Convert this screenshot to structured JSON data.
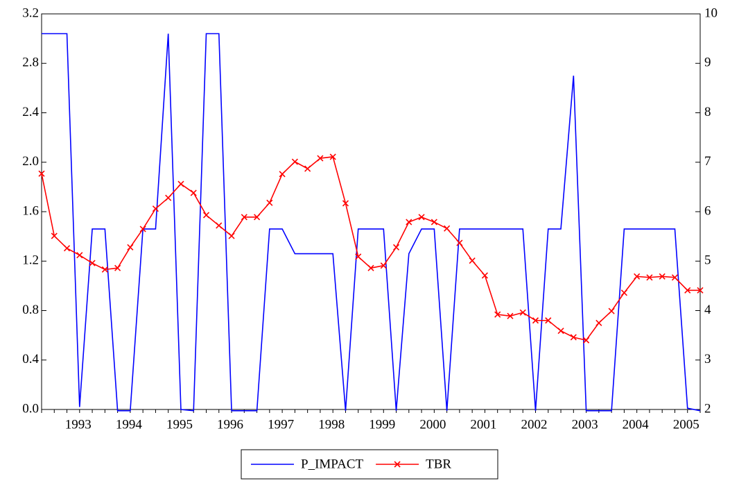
{
  "chart_data": {
    "type": "line",
    "categories": [
      null,
      null,
      null,
      "1993",
      null,
      null,
      null,
      "1994",
      null,
      null,
      null,
      "1995",
      null,
      null,
      null,
      "1996",
      null,
      null,
      null,
      "1997",
      null,
      null,
      null,
      "1998",
      null,
      null,
      null,
      "1999",
      null,
      null,
      null,
      "2000",
      null,
      null,
      null,
      "2001",
      null,
      null,
      null,
      "2002",
      null,
      null,
      null,
      "2003",
      null,
      null,
      null,
      "2004",
      null,
      null,
      null,
      "2005",
      null
    ],
    "series": [
      {
        "name": "P_IMPACT",
        "color": "#0000ff",
        "values": [
          3.04,
          3.04,
          3.04,
          0.02,
          1.46,
          1.46,
          -0.01,
          -0.01,
          1.46,
          1.46,
          3.04,
          0.0,
          -0.01,
          3.04,
          3.04,
          -0.01,
          -0.01,
          -0.01,
          1.46,
          1.46,
          1.26,
          1.26,
          1.26,
          1.26,
          -0.01,
          1.46,
          1.46,
          1.46,
          -0.01,
          1.26,
          1.46,
          1.46,
          -0.01,
          1.46,
          1.46,
          1.46,
          1.46,
          1.46,
          1.46,
          -0.01,
          1.46,
          1.46,
          2.7,
          -0.01,
          -0.01,
          -0.01,
          1.46,
          1.46,
          1.46,
          1.46,
          1.46,
          0.01,
          -0.01
        ]
      },
      {
        "name": "TBR",
        "color": "#ff0000",
        "axis": "y2",
        "marker": "x",
        "values": [
          6.77,
          5.51,
          5.26,
          5.12,
          4.96,
          4.83,
          4.86,
          5.28,
          5.65,
          6.06,
          6.28,
          6.56,
          6.38,
          5.93,
          5.72,
          5.51,
          5.89,
          5.89,
          6.18,
          6.76,
          7.01,
          6.87,
          7.08,
          7.11,
          6.17,
          5.09,
          4.86,
          4.91,
          5.28,
          5.79,
          5.89,
          5.79,
          5.66,
          5.37,
          5.01,
          4.71,
          3.92,
          3.89,
          3.96,
          3.8,
          3.8,
          3.59,
          3.46,
          3.4,
          3.75,
          3.99,
          4.36,
          4.69,
          4.67,
          4.69,
          4.67,
          4.41,
          4.41
        ]
      }
    ],
    "ylim": [
      0,
      3.2
    ],
    "yticks": [
      {
        "value": 0,
        "label": "0.0"
      },
      0.4,
      0.8,
      1.2,
      1.6,
      {
        "value": 2,
        "label": "2.0"
      },
      2.4,
      2.8,
      3.2
    ],
    "y2lim": [
      2,
      10
    ],
    "y2ticks": [
      2,
      3,
      4,
      5,
      6,
      7,
      8,
      9,
      10
    ],
    "grid": false,
    "legend": "bottom"
  }
}
